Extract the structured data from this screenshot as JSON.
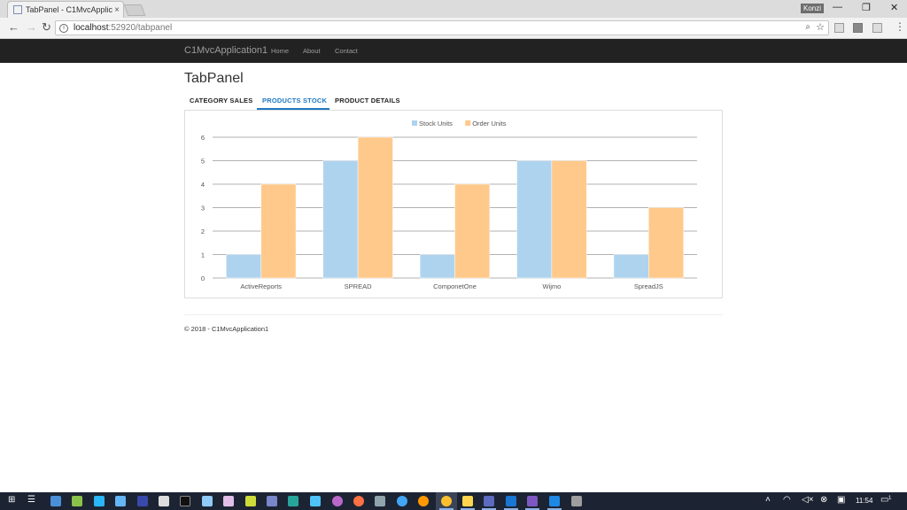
{
  "browser": {
    "tab_title": "TabPanel - C1MvcApplica",
    "tab_close": "×",
    "profile": "Konzi",
    "url_host": "localhost",
    "url_path": ":52920/tabpanel",
    "window_controls": {
      "minimize": "—",
      "maximize": "❐",
      "close": "✕"
    },
    "nav": {
      "back": "←",
      "forward": "→",
      "reload": "↻"
    }
  },
  "app": {
    "brand": "C1MvcApplication1",
    "nav_links": [
      "Home",
      "About",
      "Contact"
    ]
  },
  "page": {
    "title": "TabPanel",
    "tabs": [
      {
        "label": "CATEGORY SALES",
        "active": false
      },
      {
        "label": "PRODUCTS STOCK",
        "active": true
      },
      {
        "label": "PRODUCT DETAILS",
        "active": false
      }
    ],
    "footer": "© 2018 - C1MvcApplication1"
  },
  "chart_data": {
    "type": "bar",
    "title": "",
    "xlabel": "",
    "ylabel": "",
    "categories": [
      "ActiveReports",
      "SPREAD",
      "ComponetOne",
      "Wijmo",
      "SpreadJS"
    ],
    "series": [
      {
        "name": "Stock Units",
        "color": "#aed3ef",
        "values": [
          1,
          5,
          1,
          5,
          1
        ]
      },
      {
        "name": "Order Units",
        "color": "#ffc98b",
        "values": [
          4,
          6,
          4,
          5,
          3
        ]
      }
    ],
    "ylim": [
      0,
      6
    ],
    "yticks": [
      0,
      1,
      2,
      3,
      4,
      5,
      6
    ],
    "grid": true,
    "legend": "top-center"
  },
  "taskbar": {
    "time": "11:54",
    "notification_count": "1"
  }
}
